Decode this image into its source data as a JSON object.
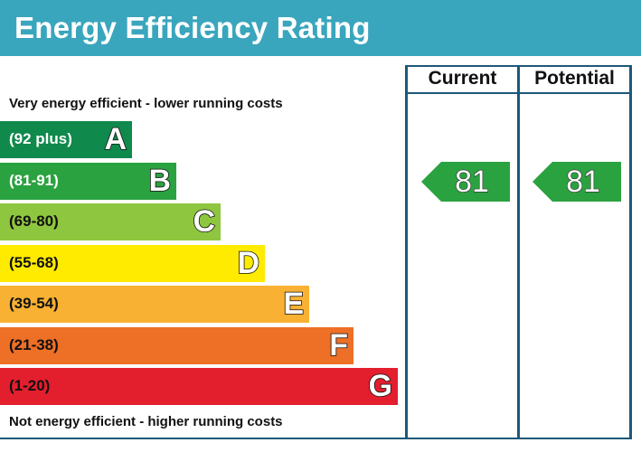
{
  "header": {
    "title": "Energy Efficiency Rating",
    "bg_color": "#3aa6bd"
  },
  "notes": {
    "top": "Very energy efficient - lower running costs",
    "bottom": "Not energy efficient - higher running costs"
  },
  "columns": {
    "current": "Current",
    "potential": "Potential"
  },
  "chart_data": {
    "type": "bar",
    "title": "Energy Efficiency Rating",
    "bands": [
      {
        "letter": "A",
        "range": "(92 plus)",
        "color": "#0f8a4c",
        "text_color": "#ffffff"
      },
      {
        "letter": "B",
        "range": "(81-91)",
        "color": "#2ba240",
        "text_color": "#ffffff"
      },
      {
        "letter": "C",
        "range": "(69-80)",
        "color": "#8fc63f",
        "text_color": "#111111"
      },
      {
        "letter": "D",
        "range": "(55-68)",
        "color": "#ffeb00",
        "text_color": "#111111"
      },
      {
        "letter": "E",
        "range": "(39-54)",
        "color": "#f8b132",
        "text_color": "#111111"
      },
      {
        "letter": "F",
        "range": "(21-38)",
        "color": "#ee6f26",
        "text_color": "#111111"
      },
      {
        "letter": "G",
        "range": "(1-20)",
        "color": "#e31e2d",
        "text_color": "#111111"
      }
    ],
    "ratings": [
      {
        "column": "Current",
        "value": 81,
        "band": "B",
        "color": "#2ba240"
      },
      {
        "column": "Potential",
        "value": 81,
        "band": "B",
        "color": "#2ba240"
      }
    ]
  }
}
